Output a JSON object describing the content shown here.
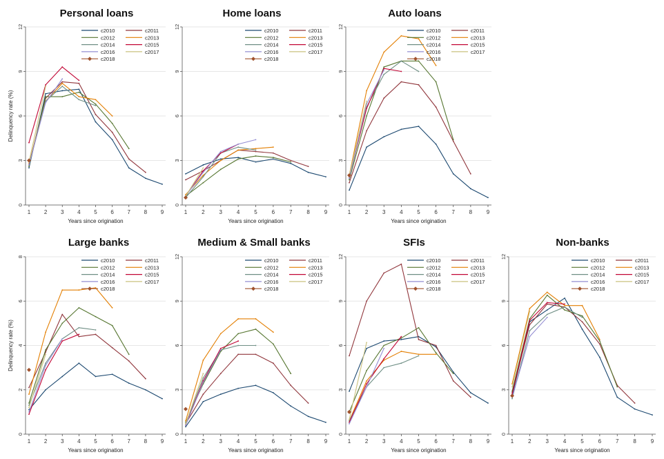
{
  "colors": {
    "grid": "#e6e6e6",
    "axis": "#555555",
    "series": {
      "c2010": "#1a476f",
      "c2011": "#90353b",
      "c2012": "#55752f",
      "c2013": "#e37e00",
      "c2014": "#6e8e84",
      "c2015": "#c10534",
      "c2016": "#938dd2",
      "c2017": "#cac27e",
      "c2018": "#a0522d"
    }
  },
  "legend_labels": [
    "c2010",
    "c2011",
    "c2012",
    "c2013",
    "c2014",
    "c2015",
    "c2016",
    "c2017",
    "c2018"
  ],
  "chart_data": [
    {
      "type": "line",
      "title": "Personal loans",
      "xlabel": "Years since origination",
      "ylabel": "Delinquency rate (%)",
      "x": [
        1,
        2,
        3,
        4,
        5,
        6,
        7,
        8,
        9
      ],
      "ylim": [
        0,
        12
      ],
      "yticks": [
        0,
        3,
        6,
        9,
        12
      ],
      "grid": true,
      "legend": "top-right",
      "series": [
        {
          "name": "c2010",
          "values": [
            2.5,
            7.5,
            7.7,
            7.8,
            5.6,
            4.4,
            2.5,
            1.8,
            1.4
          ]
        },
        {
          "name": "c2011",
          "values": [
            2.7,
            7.2,
            8.3,
            8.2,
            6.1,
            4.9,
            3.1,
            2.2,
            null
          ]
        },
        {
          "name": "c2012",
          "values": [
            2.6,
            7.3,
            7.3,
            7.6,
            6.8,
            5.5,
            3.8,
            null,
            null
          ]
        },
        {
          "name": "c2013",
          "values": [
            2.8,
            7.0,
            8.2,
            7.3,
            7.1,
            6.0,
            null,
            null,
            null
          ]
        },
        {
          "name": "c2014",
          "values": [
            2.7,
            7.0,
            8.0,
            7.1,
            6.7,
            null,
            null,
            null,
            null
          ]
        },
        {
          "name": "c2015",
          "values": [
            4.2,
            8.1,
            9.3,
            8.4,
            null,
            null,
            null,
            null,
            null
          ]
        },
        {
          "name": "c2016",
          "values": [
            2.7,
            6.9,
            8.5,
            null,
            null,
            null,
            null,
            null,
            null
          ]
        },
        {
          "name": "c2017",
          "values": [
            2.9,
            8.0,
            null,
            null,
            null,
            null,
            null,
            null,
            null
          ]
        },
        {
          "name": "c2018",
          "values": [
            3.0,
            null,
            null,
            null,
            null,
            null,
            null,
            null,
            null
          ]
        }
      ]
    },
    {
      "type": "line",
      "title": "Home loans",
      "xlabel": "Years since origination",
      "ylabel": "",
      "x": [
        1,
        2,
        3,
        4,
        5,
        6,
        7,
        8,
        9
      ],
      "ylim": [
        0,
        12
      ],
      "yticks": [
        0,
        3,
        6,
        9,
        12
      ],
      "grid": true,
      "legend": "top-right",
      "series": [
        {
          "name": "c2010",
          "values": [
            2.1,
            2.7,
            3.1,
            3.2,
            2.9,
            3.1,
            2.8,
            2.2,
            1.9
          ]
        },
        {
          "name": "c2011",
          "values": [
            1.7,
            2.3,
            3.0,
            3.7,
            3.6,
            3.5,
            3.0,
            2.6,
            null
          ]
        },
        {
          "name": "c2012",
          "values": [
            0.6,
            1.5,
            2.4,
            3.1,
            3.3,
            3.2,
            2.9,
            null,
            null
          ]
        },
        {
          "name": "c2013",
          "values": [
            0.7,
            2.0,
            3.0,
            3.7,
            3.8,
            3.9,
            null,
            null,
            null
          ]
        },
        {
          "name": "c2014",
          "values": [
            0.5,
            1.9,
            3.5,
            3.9,
            3.7,
            null,
            null,
            null,
            null
          ]
        },
        {
          "name": "c2015",
          "values": [
            0.6,
            2.3,
            3.5,
            4.1,
            null,
            null,
            null,
            null,
            null
          ]
        },
        {
          "name": "c2016",
          "values": [
            0.6,
            2.2,
            3.6,
            4.1,
            4.4,
            null,
            null,
            null,
            null
          ]
        },
        {
          "name": "c2017",
          "values": [
            0.6,
            2.5,
            null,
            null,
            null,
            null,
            null,
            null,
            null
          ]
        },
        {
          "name": "c2018",
          "values": [
            0.5,
            null,
            null,
            null,
            null,
            null,
            null,
            null,
            null
          ]
        }
      ]
    },
    {
      "type": "line",
      "title": "Auto loans",
      "xlabel": "Years since origination",
      "ylabel": "",
      "x": [
        1,
        2,
        3,
        4,
        5,
        6,
        7,
        8,
        9
      ],
      "ylim": [
        0,
        12
      ],
      "yticks": [
        0,
        3,
        6,
        9,
        12
      ],
      "grid": true,
      "legend": "top-right",
      "series": [
        {
          "name": "c2010",
          "values": [
            1.0,
            3.9,
            4.6,
            5.1,
            5.3,
            4.1,
            2.1,
            1.1,
            0.5
          ]
        },
        {
          "name": "c2011",
          "values": [
            1.5,
            5.0,
            7.2,
            8.3,
            8.1,
            6.6,
            4.3,
            2.1,
            null
          ]
        },
        {
          "name": "c2012",
          "values": [
            1.7,
            6.0,
            9.3,
            9.7,
            9.7,
            8.3,
            4.4,
            null,
            null
          ]
        },
        {
          "name": "c2013",
          "values": [
            2.0,
            7.7,
            10.3,
            11.4,
            11.2,
            9.4,
            null,
            null,
            null
          ]
        },
        {
          "name": "c2014",
          "values": [
            1.8,
            6.6,
            8.8,
            9.7,
            9.0,
            null,
            null,
            null,
            null
          ]
        },
        {
          "name": "c2015",
          "values": [
            1.9,
            6.5,
            9.2,
            9.0,
            null,
            null,
            null,
            null,
            null
          ]
        },
        {
          "name": "c2016",
          "values": [
            1.8,
            6.8,
            9.1,
            null,
            null,
            null,
            null,
            null,
            null
          ]
        },
        {
          "name": "c2017",
          "values": [
            2.0,
            7.0,
            null,
            null,
            null,
            null,
            null,
            null,
            null
          ]
        },
        {
          "name": "c2018",
          "values": [
            2.0,
            null,
            null,
            null,
            null,
            null,
            null,
            null,
            null
          ]
        }
      ]
    },
    {
      "type": "line",
      "title": "Large banks",
      "xlabel": "Years since origination",
      "ylabel": "Delinquency rate (%)",
      "x": [
        1,
        2,
        3,
        4,
        5,
        6,
        7,
        8,
        9
      ],
      "ylim": [
        0,
        8
      ],
      "yticks": [
        0,
        2,
        4,
        6,
        8
      ],
      "grid": true,
      "legend": "top-right",
      "series": [
        {
          "name": "c2010",
          "values": [
            1.1,
            2.0,
            2.6,
            3.2,
            2.6,
            2.7,
            2.3,
            2.0,
            1.6
          ]
        },
        {
          "name": "c2011",
          "values": [
            2.1,
            3.7,
            5.4,
            4.4,
            4.5,
            3.9,
            3.3,
            2.5,
            null
          ]
        },
        {
          "name": "c2012",
          "values": [
            1.4,
            3.8,
            5.0,
            5.7,
            5.3,
            4.9,
            3.6,
            null,
            null
          ]
        },
        {
          "name": "c2013",
          "values": [
            1.8,
            4.6,
            6.5,
            6.5,
            6.6,
            5.7,
            null,
            null,
            null
          ]
        },
        {
          "name": "c2014",
          "values": [
            1.3,
            3.2,
            4.3,
            4.8,
            4.7,
            null,
            null,
            null,
            null
          ]
        },
        {
          "name": "c2015",
          "values": [
            0.9,
            2.9,
            4.2,
            4.5,
            null,
            null,
            null,
            null,
            null
          ]
        },
        {
          "name": "c2016",
          "values": [
            1.0,
            3.1,
            4.3,
            null,
            null,
            null,
            null,
            null,
            null
          ]
        },
        {
          "name": "c2017",
          "values": [
            1.2,
            3.6,
            null,
            null,
            null,
            null,
            null,
            null,
            null
          ]
        },
        {
          "name": "c2018",
          "values": [
            2.9,
            null,
            null,
            null,
            null,
            null,
            null,
            null,
            null
          ]
        }
      ]
    },
    {
      "type": "line",
      "title": "Medium & Small banks",
      "xlabel": "Years since origination",
      "ylabel": "",
      "x": [
        1,
        2,
        3,
        4,
        5,
        6,
        7,
        8,
        9
      ],
      "ylim": [
        0,
        12
      ],
      "yticks": [
        0,
        3,
        6,
        9,
        12
      ],
      "grid": true,
      "legend": "top-right",
      "series": [
        {
          "name": "c2010",
          "values": [
            0.5,
            2.2,
            2.7,
            3.1,
            3.3,
            2.8,
            1.9,
            1.2,
            0.8
          ]
        },
        {
          "name": "c2011",
          "values": [
            0.7,
            2.7,
            4.1,
            5.4,
            5.4,
            4.8,
            3.3,
            2.1,
            null
          ]
        },
        {
          "name": "c2012",
          "values": [
            0.8,
            3.4,
            5.6,
            6.8,
            7.1,
            6.1,
            4.1,
            null,
            null
          ]
        },
        {
          "name": "c2013",
          "values": [
            0.9,
            5.0,
            6.8,
            7.8,
            7.8,
            6.9,
            null,
            null,
            null
          ]
        },
        {
          "name": "c2014",
          "values": [
            0.7,
            3.8,
            5.7,
            6.0,
            6.0,
            null,
            null,
            null,
            null
          ]
        },
        {
          "name": "c2015",
          "values": [
            0.6,
            3.6,
            5.8,
            6.3,
            null,
            null,
            null,
            null,
            null
          ]
        },
        {
          "name": "c2016",
          "values": [
            0.6,
            3.5,
            5.7,
            null,
            null,
            null,
            null,
            null,
            null
          ]
        },
        {
          "name": "c2017",
          "values": [
            0.7,
            4.1,
            null,
            null,
            null,
            null,
            null,
            null,
            null
          ]
        },
        {
          "name": "c2018",
          "values": [
            1.7,
            null,
            null,
            null,
            null,
            null,
            null,
            null,
            null
          ]
        }
      ]
    },
    {
      "type": "line",
      "title": "SFIs",
      "xlabel": "Years since origination",
      "ylabel": "",
      "x": [
        1,
        2,
        3,
        4,
        5,
        6,
        7,
        8,
        9
      ],
      "ylim": [
        0,
        12
      ],
      "yticks": [
        0,
        3,
        6,
        9,
        12
      ],
      "grid": true,
      "legend": "top-right",
      "series": [
        {
          "name": "c2010",
          "values": [
            2.9,
            5.8,
            6.3,
            6.4,
            6.6,
            5.9,
            4.2,
            2.8,
            2.1
          ]
        },
        {
          "name": "c2011",
          "values": [
            5.3,
            9.0,
            10.9,
            11.5,
            6.4,
            6.0,
            3.6,
            2.5,
            null
          ]
        },
        {
          "name": "c2012",
          "values": [
            1.5,
            4.3,
            6.0,
            6.5,
            7.2,
            5.5,
            4.1,
            null,
            null
          ]
        },
        {
          "name": "c2013",
          "values": [
            0.9,
            3.6,
            5.0,
            5.6,
            5.4,
            5.4,
            null,
            null,
            null
          ]
        },
        {
          "name": "c2014",
          "values": [
            0.9,
            3.2,
            4.5,
            4.8,
            5.3,
            null,
            null,
            null,
            null
          ]
        },
        {
          "name": "c2015",
          "values": [
            0.8,
            3.4,
            5.1,
            6.6,
            null,
            null,
            null,
            null,
            null
          ]
        },
        {
          "name": "c2016",
          "values": [
            0.7,
            3.2,
            5.8,
            null,
            null,
            null,
            null,
            null,
            null
          ]
        },
        {
          "name": "c2017",
          "values": [
            1.0,
            6.2,
            null,
            null,
            null,
            null,
            null,
            null,
            null
          ]
        },
        {
          "name": "c2018",
          "values": [
            1.5,
            null,
            null,
            null,
            null,
            null,
            null,
            null,
            null
          ]
        }
      ]
    },
    {
      "type": "line",
      "title": "Non-banks",
      "xlabel": "Years since origination",
      "ylabel": "",
      "x": [
        1,
        2,
        3,
        4,
        5,
        6,
        7,
        8,
        9
      ],
      "ylim": [
        0,
        12
      ],
      "yticks": [
        0,
        3,
        6,
        9,
        12
      ],
      "grid": true,
      "legend": "top-right",
      "series": [
        {
          "name": "c2010",
          "values": [
            2.6,
            7.6,
            8.4,
            9.2,
            7.1,
            5.2,
            2.5,
            1.7,
            1.3
          ]
        },
        {
          "name": "c2011",
          "values": [
            2.8,
            7.4,
            8.8,
            8.6,
            7.6,
            6.1,
            3.3,
            2.1,
            null
          ]
        },
        {
          "name": "c2012",
          "values": [
            2.9,
            7.8,
            9.4,
            8.4,
            8.0,
            6.3,
            3.2,
            null,
            null
          ]
        },
        {
          "name": "c2013",
          "values": [
            3.4,
            8.5,
            9.6,
            8.7,
            8.7,
            6.4,
            null,
            null,
            null
          ]
        },
        {
          "name": "c2014",
          "values": [
            2.4,
            7.0,
            8.1,
            8.6,
            7.9,
            null,
            null,
            null,
            null
          ]
        },
        {
          "name": "c2015",
          "values": [
            2.7,
            7.7,
            8.9,
            8.8,
            null,
            null,
            null,
            null,
            null
          ]
        },
        {
          "name": "c2016",
          "values": [
            2.5,
            6.6,
            7.9,
            null,
            null,
            null,
            null,
            null,
            null
          ]
        },
        {
          "name": "c2017",
          "values": [
            3.2,
            8.3,
            null,
            null,
            null,
            null,
            null,
            null,
            null
          ]
        },
        {
          "name": "c2018",
          "values": [
            2.6,
            null,
            null,
            null,
            null,
            null,
            null,
            null,
            null
          ]
        }
      ]
    }
  ]
}
